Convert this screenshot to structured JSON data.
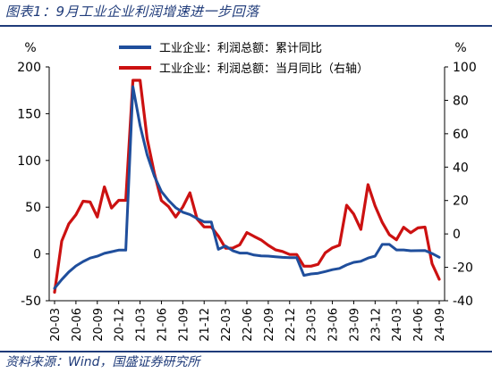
{
  "figure": {
    "title": "图表1：9月工业企业利润增速进一步回落",
    "source": "资料来源：Wind，国盛证券研究所"
  },
  "chart_data": {
    "type": "line",
    "left_unit": "%",
    "right_unit": "%",
    "y_left_lim": [
      -50,
      200
    ],
    "y_right_lim": [
      -40,
      100
    ],
    "y_left_ticks": [
      200,
      150,
      100,
      50,
      0,
      -50
    ],
    "y_right_ticks": [
      100,
      80,
      60,
      40,
      20,
      0,
      -20,
      -40
    ],
    "x_tick_labels": [
      "20-03",
      "20-06",
      "20-09",
      "20-12",
      "21-03",
      "21-06",
      "21-09",
      "21-12",
      "22-03",
      "22-06",
      "22-09",
      "22-12",
      "23-03",
      "23-06",
      "23-09",
      "23-12",
      "24-03",
      "24-06",
      "24-09"
    ],
    "months": [
      "20-03",
      "20-04",
      "20-05",
      "20-06",
      "20-07",
      "20-08",
      "20-09",
      "20-10",
      "20-11",
      "20-12",
      "21-01",
      "21-02",
      "21-03",
      "21-04",
      "21-05",
      "21-06",
      "21-07",
      "21-08",
      "21-09",
      "21-10",
      "21-11",
      "21-12",
      "22-01",
      "22-02",
      "22-03",
      "22-04",
      "22-05",
      "22-06",
      "22-07",
      "22-08",
      "22-09",
      "22-10",
      "22-11",
      "22-12",
      "23-01",
      "23-02",
      "23-03",
      "23-04",
      "23-05",
      "23-06",
      "23-07",
      "23-08",
      "23-09",
      "23-10",
      "23-11",
      "23-12",
      "24-01",
      "24-02",
      "24-03",
      "24-04",
      "24-05",
      "24-06",
      "24-07",
      "24-08",
      "24-09"
    ],
    "series": [
      {
        "name": "工业企业：利润总额：累计同比",
        "axis": "left",
        "color": "#1f4e9c",
        "values": [
          -36.7,
          -27.4,
          -19.3,
          -12.8,
          -8.1,
          -4.4,
          -2.4,
          0.7,
          2.4,
          4.1,
          4.1,
          178.9,
          137.3,
          106.0,
          83.4,
          66.9,
          57.3,
          49.5,
          44.7,
          42.2,
          38.0,
          34.3,
          34.3,
          5.0,
          8.5,
          3.5,
          1.0,
          1.0,
          -1.1,
          -2.1,
          -2.3,
          -3.0,
          -3.6,
          -4.0,
          -4.0,
          -22.9,
          -21.4,
          -20.6,
          -18.8,
          -16.8,
          -15.5,
          -11.7,
          -9.0,
          -7.8,
          -4.4,
          -2.3,
          10.2,
          10.2,
          4.3,
          4.3,
          3.4,
          3.5,
          3.6,
          0.5,
          -3.5
        ]
      },
      {
        "name": "工业企业：利润总额：当月同比（右轴）",
        "axis": "right",
        "color": "#cc1111",
        "values": [
          -34.9,
          -4.3,
          6.0,
          11.5,
          19.6,
          19.1,
          10.1,
          28.2,
          15.5,
          20.1,
          20.1,
          92.0,
          92.0,
          57.0,
          36.4,
          20.0,
          16.4,
          10.1,
          16.1,
          24.6,
          9.0,
          4.2,
          4.2,
          -1.3,
          -8.5,
          -8.5,
          -6.5,
          0.8,
          -1.5,
          -3.6,
          -6.8,
          -9.5,
          -10.5,
          -12.3,
          -12.3,
          -19.3,
          -19.3,
          -18.2,
          -11.3,
          -8.3,
          -6.7,
          17.2,
          11.9,
          2.7,
          29.5,
          16.8,
          6.9,
          -0.5,
          -3.5,
          4.0,
          0.7,
          3.6,
          4.1,
          -17.8,
          -27.1
        ]
      }
    ],
    "legend_placement": "top-center",
    "grid": false
  }
}
